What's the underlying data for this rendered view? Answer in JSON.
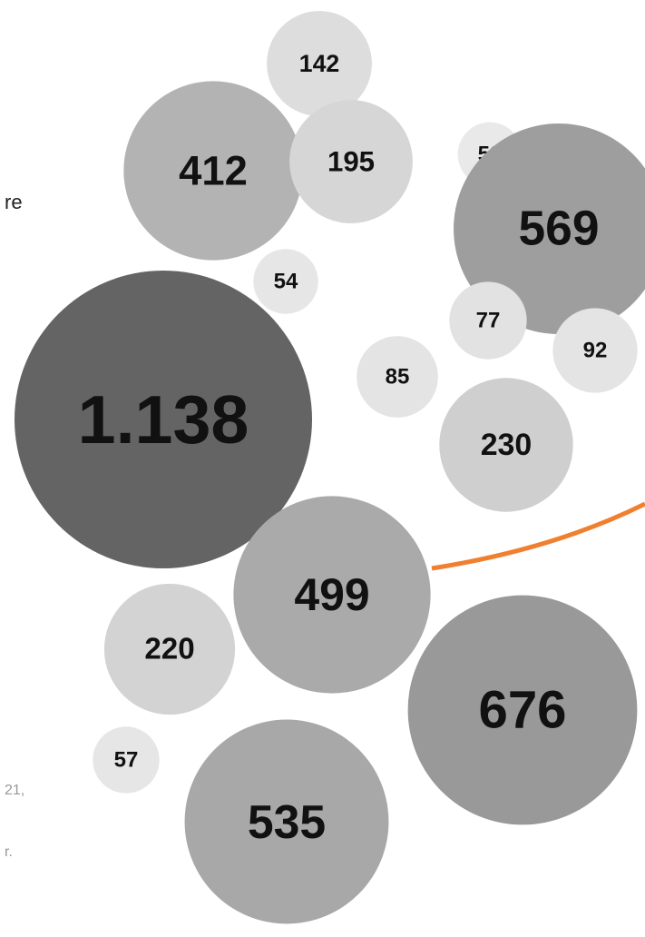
{
  "chart_data": {
    "type": "bubble",
    "title": "",
    "bubbles": [
      {
        "label": "142",
        "value": 142,
        "color": "#dddddd"
      },
      {
        "label": "412",
        "value": 412,
        "color": "#b3b3b3"
      },
      {
        "label": "195",
        "value": 195,
        "color": "#d6d6d6"
      },
      {
        "label": "53",
        "value": 53,
        "color": "#e9e9e9"
      },
      {
        "label": "569",
        "value": 569,
        "color": "#9e9e9e"
      },
      {
        "label": "54",
        "value": 54,
        "color": "#e6e6e6"
      },
      {
        "label": "77",
        "value": 77,
        "color": "#e2e2e2"
      },
      {
        "label": "92",
        "value": 92,
        "color": "#e4e4e4"
      },
      {
        "label": "85",
        "value": 85,
        "color": "#e4e4e4"
      },
      {
        "label": "1.138",
        "value": 1138,
        "color": "#646464"
      },
      {
        "label": "230",
        "value": 230,
        "color": "#cfcfcf"
      },
      {
        "label": "499",
        "value": 499,
        "color": "#aaaaaa"
      },
      {
        "label": "220",
        "value": 220,
        "color": "#d3d3d3"
      },
      {
        "label": "676",
        "value": 676,
        "color": "#999999"
      },
      {
        "label": "57",
        "value": 57,
        "color": "#e6e6e6"
      },
      {
        "label": "535",
        "value": 535,
        "color": "#a8a8a8"
      }
    ],
    "accent_color": "#f08030"
  },
  "side_text": {
    "fragment_dark": "re",
    "fragment_grey_1": "21,",
    "fragment_grey_2": "r."
  }
}
